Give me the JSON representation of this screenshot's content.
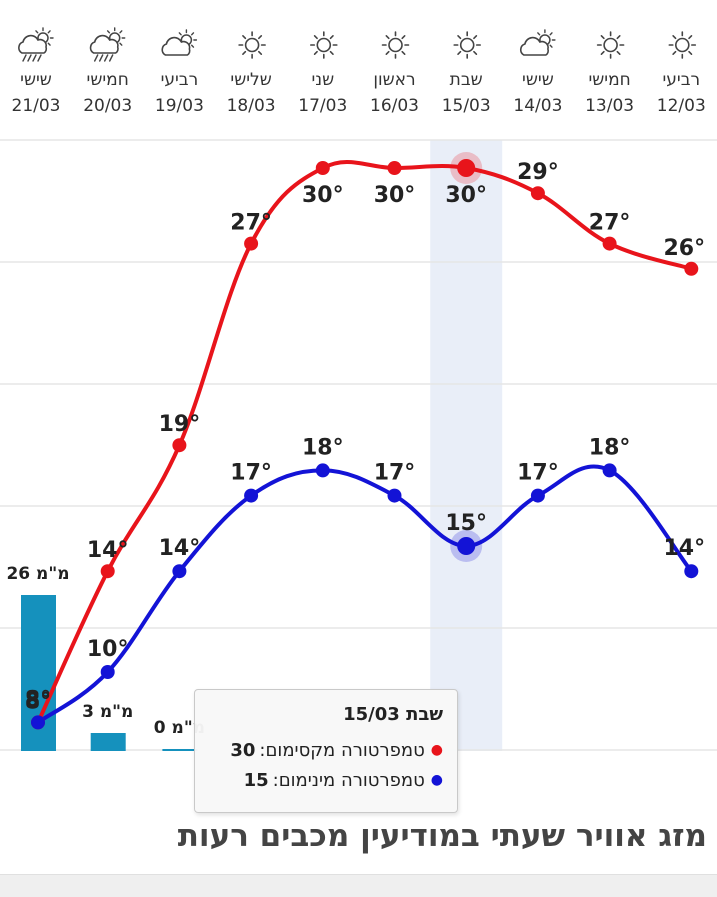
{
  "chart_data": {
    "type": "line",
    "categories": [
      {
        "day": "רביעי",
        "date": "12/03",
        "icon": "sun-icon"
      },
      {
        "day": "חמישי",
        "date": "13/03",
        "icon": "sun-icon"
      },
      {
        "day": "שישי",
        "date": "14/03",
        "icon": "partly-cloudy-icon"
      },
      {
        "day": "שבת",
        "date": "15/03",
        "icon": "sun-icon"
      },
      {
        "day": "ראשון",
        "date": "16/03",
        "icon": "sun-icon"
      },
      {
        "day": "שני",
        "date": "17/03",
        "icon": "sun-icon"
      },
      {
        "day": "שלישי",
        "date": "18/03",
        "icon": "sun-icon"
      },
      {
        "day": "רביעי",
        "date": "19/03",
        "icon": "partly-cloudy-icon"
      },
      {
        "day": "חמישי",
        "date": "20/03",
        "icon": "rain-cloud-icon"
      },
      {
        "day": "שישי",
        "date": "21/03",
        "icon": "rain-cloud-icon"
      }
    ],
    "series": [
      {
        "key": "max",
        "color": "#e8141b",
        "values": [
          26,
          27,
          29,
          30,
          30,
          30,
          27,
          19,
          14,
          8
        ]
      },
      {
        "key": "min",
        "color": "#1313d6",
        "values": [
          14,
          18,
          17,
          15,
          17,
          18,
          17,
          14,
          10,
          8
        ]
      }
    ],
    "temp_label_suffix": "°",
    "rain": {
      "color": "#1591bd",
      "values": [
        null,
        null,
        null,
        null,
        null,
        null,
        null,
        0,
        3,
        26
      ],
      "labels": [
        "",
        "",
        "",
        "",
        "",
        "",
        "",
        "0 מ\"מ",
        "3 מ\"מ",
        "26 מ\"מ"
      ]
    },
    "highlight_index": 3,
    "ylim": [
      0,
      40
    ],
    "grid": true
  },
  "tooltip": {
    "title": "שבת 15/03",
    "max_label": "טמפרטורה מקסימום: ",
    "max_value": "30",
    "min_label": "טמפרטורה מינימום: ",
    "min_value": "15"
  },
  "footer": {
    "title": "מזג אוויר שעתי במודיעין מכבים רעות"
  }
}
